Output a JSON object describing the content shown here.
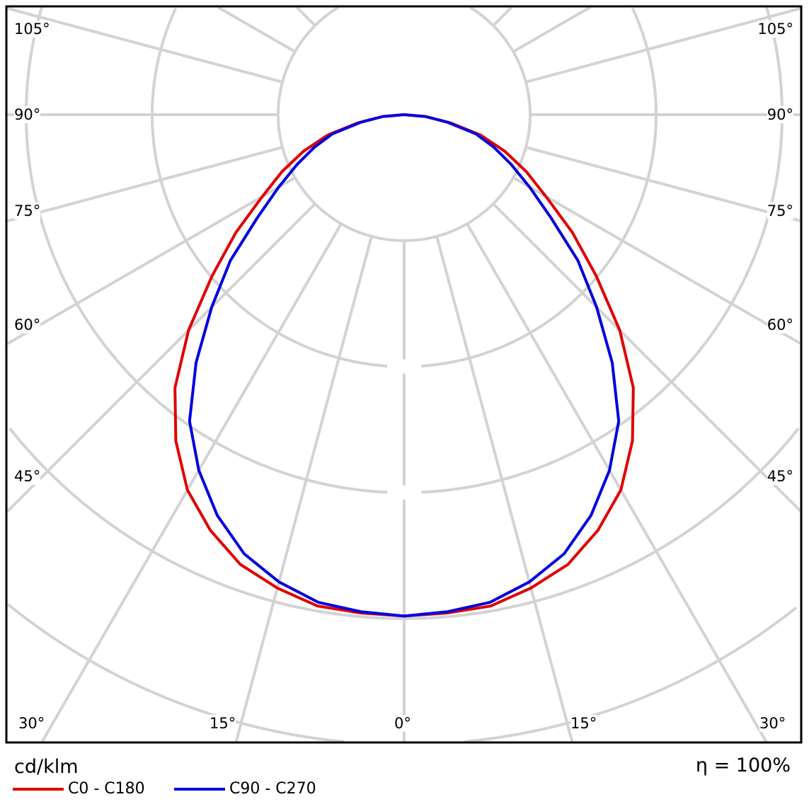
{
  "chart_data": {
    "type": "polar-line",
    "unit_label": "cd/klm",
    "efficiency_label": "η = 100%",
    "angle_labels": {
      "left": [
        "105°",
        "90°",
        "75°",
        "60°",
        "45°",
        "30°"
      ],
      "right": [
        "105°",
        "90°",
        "75°",
        "60°",
        "45°",
        "30°"
      ],
      "bottom": [
        "30°",
        "15°",
        "0°",
        "15°",
        "30°"
      ]
    },
    "angle_step_deg": 15,
    "ring_values": [
      100,
      200,
      300,
      400,
      500
    ],
    "grid": true,
    "legend_position": "bottom-left",
    "gamma_deg": [
      0,
      5,
      10,
      15,
      20,
      25,
      30,
      35,
      40,
      45,
      50,
      55,
      60,
      65,
      70,
      75,
      80,
      85,
      90
    ],
    "series": [
      {
        "name": "C0 - C180",
        "color": "#e00000",
        "values": [
          398,
          397,
          396,
          389,
          380,
          364,
          344,
          316,
          283,
          242,
          199,
          163,
          130,
          107,
          85,
          63,
          37,
          17,
          0
        ]
      },
      {
        "name": "C90 - C270",
        "color": "#0000e0",
        "values": [
          398,
          396,
          393,
          384,
          371,
          351,
          326,
          297,
          257,
          216,
          180,
          142,
          115,
          94,
          76,
          59,
          35,
          17,
          0
        ]
      }
    ]
  }
}
